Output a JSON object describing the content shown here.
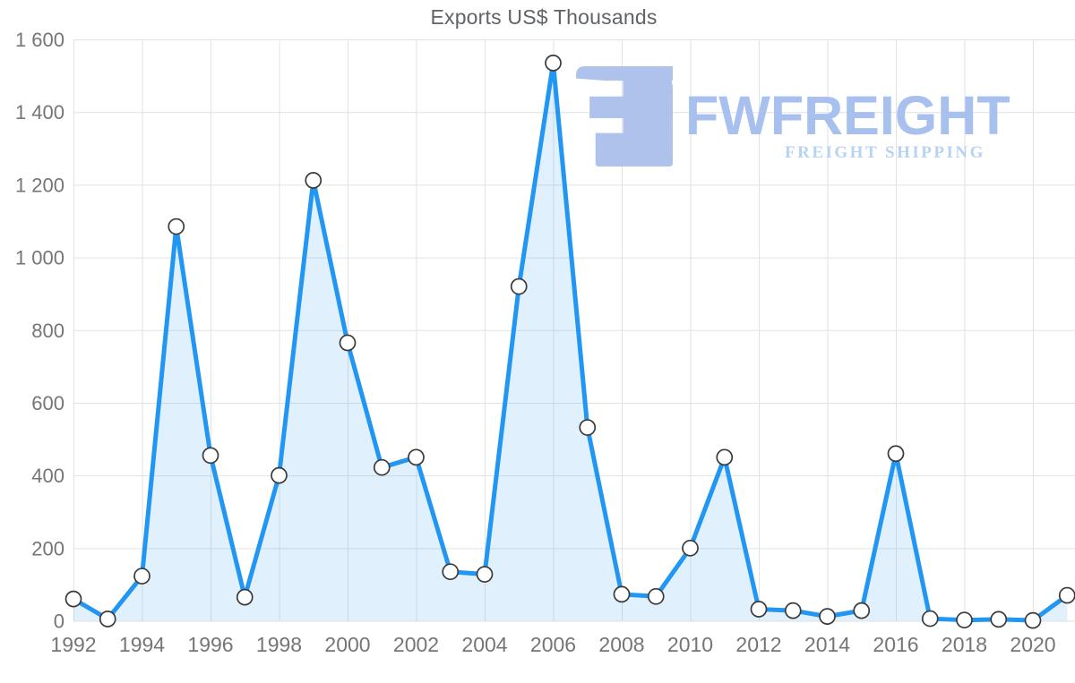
{
  "title": "Exports US$ Thousands",
  "watermark": {
    "brand": "FWFREIGHT",
    "tagline": "FREIGHT SHIPPING",
    "mark_color": "#aec2ec",
    "brand_color": "#a8c0ed",
    "tagline_color": "#b7d2f3"
  },
  "chart_data": {
    "type": "area",
    "title": "Exports US$ Thousands",
    "x": [
      1992,
      1993,
      1994,
      1995,
      1996,
      1997,
      1998,
      1999,
      2000,
      2001,
      2002,
      2003,
      2004,
      2005,
      2006,
      2007,
      2008,
      2009,
      2010,
      2011,
      2012,
      2013,
      2014,
      2015,
      2016,
      2017,
      2018,
      2019,
      2020,
      2021
    ],
    "series": [
      {
        "name": "Exports US$ Thousands",
        "values": [
          60,
          5,
          123,
          1085,
          455,
          65,
          400,
          1212,
          765,
          422,
          450,
          135,
          128,
          920,
          1535,
          532,
          73,
          67,
          200,
          450,
          32,
          28,
          12,
          28,
          460,
          6,
          2,
          4,
          1,
          70
        ]
      }
    ],
    "xlabel": "",
    "ylabel": "",
    "ylim": [
      0,
      1600
    ],
    "grid": true,
    "legend": false,
    "y_ticks": [
      {
        "value": 0,
        "label": "0"
      },
      {
        "value": 200,
        "label": "200"
      },
      {
        "value": 400,
        "label": "400"
      },
      {
        "value": 600,
        "label": "600"
      },
      {
        "value": 800,
        "label": "800"
      },
      {
        "value": 1000,
        "label": "1 000"
      },
      {
        "value": 1200,
        "label": "1 200"
      },
      {
        "value": 1400,
        "label": "1 400"
      },
      {
        "value": 1600,
        "label": "1 600"
      }
    ],
    "x_tick_labels": [
      "1992",
      "1994",
      "1996",
      "1998",
      "2000",
      "2002",
      "2004",
      "2006",
      "2008",
      "2010",
      "2012",
      "2014",
      "2016",
      "2018",
      "2020"
    ],
    "colors": {
      "line": "#2196f3",
      "fill": "#2196f3",
      "fill_opacity": "0.14",
      "marker_fill": "#ffffff",
      "marker_stroke": "#3a3a3a",
      "grid": "#e2e2e2",
      "tick_label": "#757575",
      "title": "#5f6368"
    }
  }
}
